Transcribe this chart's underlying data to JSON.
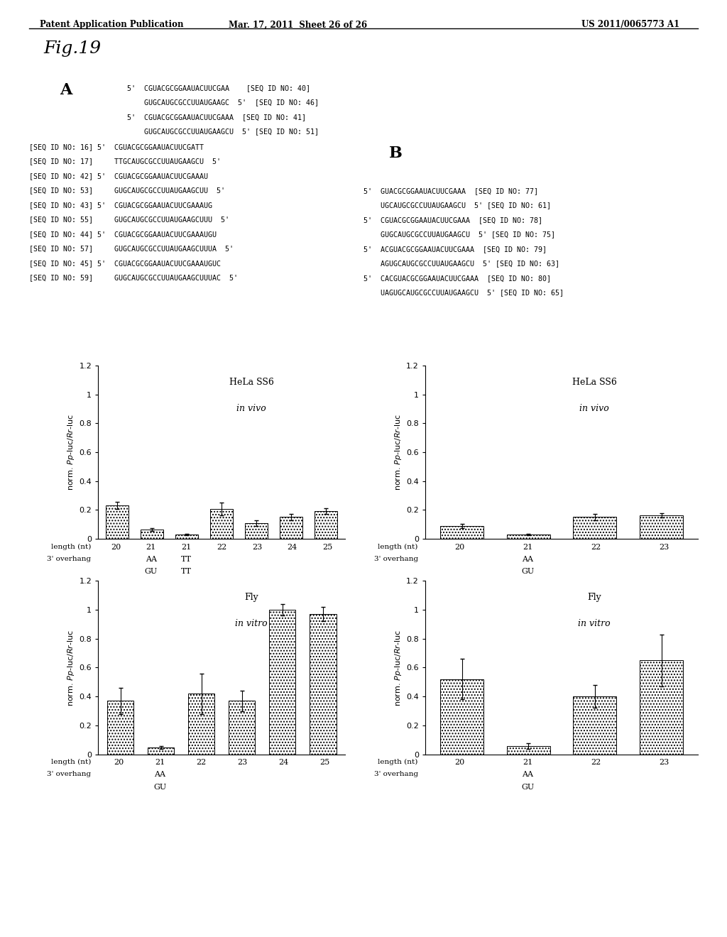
{
  "header_left": "Patent Application Publication",
  "header_mid": "Mar. 17, 2011  Sheet 26 of 26",
  "header_right": "US 2011/0065773 A1",
  "fig_title": "Fig.19",
  "section_A_label": "A",
  "section_B_label": "B",
  "seq_lines_A_top": [
    "5'  CGUACGCGGAAUACUUCGAA    [SEQ ID NO: 40]",
    "    GUGCAUGCGCCUUAUGAAGC  5'  [SEQ ID NO: 46]",
    "5'  CGUACGCGGAAUACUUCGAAA  [SEQ ID NO: 41]",
    "    GUGCAUGCGCCUUAUGAAGCU  5' [SEQ ID NO: 51]"
  ],
  "seq_lines_A_mid": [
    "[SEQ ID NO: 16] 5'  CGUACGCGGAAUACUUCGATT",
    "[SEQ ID NO: 17]     TTGCAUGCGCCUUAUGAAGCU  5'",
    "[SEQ ID NO: 42] 5'  CGUACGCGGAAUACUUCGAAAU",
    "[SEQ ID NO: 53]     GUGCAUGCGCCUUAUGAAGCUU  5'",
    "[SEQ ID NO: 43] 5'  CGUACGCGGAAUACUUCGAAAUG",
    "[SEQ ID NO: 55]     GUGCAUGCGCCUUAUGAAGCUUU  5'",
    "[SEQ ID NO: 44] 5'  CGUACGCGGAAUACUUCGAAAUGU",
    "[SEQ ID NO: 57]     GUGCAUGCGCCUUAUGAAGCUUUA  5'",
    "[SEQ ID NO: 45] 5'  CGUACGCGGAAUACUUCGAAAUGUC",
    "[SEQ ID NO: 59]     GUGCAUGCGCCUUAUGAAGCUUUAC  5'"
  ],
  "seq_lines_B": [
    "5'  GUACGCGGAAUACUUCGAAA  [SEQ ID NO: 77]",
    "    UGCAUGCGCCUUAUGAAGCU  5' [SEQ ID NO: 61]",
    "5'  CGUACGCGGAAUACUUCGAAA  [SEQ ID NO: 78]",
    "    GUGCAUGCGCCUUAUGAAGCU  5' [SEQ ID NO: 75]",
    "5'  ACGUACGCGGAAUACUUCGAAA  [SEQ ID NO: 79]",
    "    AGUGCAUGCGCCUUAUGAAGCU  5' [SEQ ID NO: 63]",
    "5'  CACGUACGCGGAAUACUUCGAAA  [SEQ ID NO: 80]",
    "    UAGUGCAUGCGCCUUAUGAAGCU  5' [SEQ ID NO: 65]"
  ],
  "chart_A_top": {
    "title_line1": "HeLa SS6",
    "title_line2": "in vivo",
    "ylim": [
      0,
      1.2
    ],
    "yticks": [
      0,
      0.2,
      0.4,
      0.6,
      0.8,
      1.0,
      1.2
    ],
    "ytick_labels": [
      "0",
      "0.2",
      "0.4",
      "0.6",
      "0.8",
      "1",
      "1.2"
    ],
    "bars": [
      0.23,
      0.065,
      0.03,
      0.205,
      0.11,
      0.15,
      0.19
    ],
    "errors": [
      0.025,
      0.01,
      0.005,
      0.045,
      0.02,
      0.02,
      0.02
    ],
    "nt_labels": [
      "20",
      "21",
      "21",
      "22",
      "23",
      "24",
      "25"
    ],
    "overhang_row1": [
      "",
      "AA",
      "TT",
      "",
      "",
      "",
      ""
    ],
    "overhang_row2": [
      "",
      "GU",
      "TT",
      "",
      "",
      "",
      ""
    ]
  },
  "chart_B_top": {
    "title_line1": "HeLa SS6",
    "title_line2": "in vivo",
    "ylim": [
      0,
      1.2
    ],
    "yticks": [
      0,
      0.2,
      0.4,
      0.6,
      0.8,
      1.0,
      1.2
    ],
    "ytick_labels": [
      "0",
      "0.2",
      "0.4",
      "0.6",
      "0.8",
      "1",
      "1.2"
    ],
    "bars": [
      0.09,
      0.03,
      0.15,
      0.16
    ],
    "errors": [
      0.015,
      0.005,
      0.02,
      0.015
    ],
    "nt_labels": [
      "20",
      "21",
      "22",
      "23"
    ],
    "overhang_row1": [
      "",
      "AA",
      "",
      ""
    ],
    "overhang_row2": [
      "",
      "GU",
      "",
      ""
    ]
  },
  "chart_A_bottom": {
    "title_line1": "Fly",
    "title_line2": "in vitro",
    "ylim": [
      0,
      1.2
    ],
    "yticks": [
      0,
      0.2,
      0.4,
      0.6,
      0.8,
      1.0,
      1.2
    ],
    "ytick_labels": [
      "0",
      "0.2",
      "0.4",
      "0.6",
      "0.8",
      "1",
      "1.2"
    ],
    "bars": [
      0.37,
      0.045,
      0.42,
      0.37,
      1.0,
      0.97
    ],
    "errors": [
      0.09,
      0.01,
      0.14,
      0.07,
      0.04,
      0.05
    ],
    "nt_labels": [
      "20",
      "21",
      "22",
      "23",
      "24",
      "25"
    ],
    "overhang_row1": [
      "",
      "AA",
      "",
      "",
      "",
      ""
    ],
    "overhang_row2": [
      "",
      "GU",
      "",
      "",
      "",
      ""
    ]
  },
  "chart_B_bottom": {
    "title_line1": "Fly",
    "title_line2": "in vitro",
    "ylim": [
      0,
      1.2
    ],
    "yticks": [
      0,
      0.2,
      0.4,
      0.6,
      0.8,
      1.0,
      1.2
    ],
    "ytick_labels": [
      "0",
      "0.2",
      "0.4",
      "0.6",
      "0.8",
      "1",
      "1.2"
    ],
    "bars": [
      0.52,
      0.055,
      0.4,
      0.65
    ],
    "errors": [
      0.14,
      0.02,
      0.08,
      0.18
    ],
    "nt_labels": [
      "20",
      "21",
      "22",
      "23"
    ],
    "overhang_row1": [
      "",
      "AA",
      "",
      ""
    ],
    "overhang_row2": [
      "",
      "GU",
      "",
      ""
    ]
  },
  "bar_color": "#ffffff",
  "bar_edgecolor": "#000000",
  "bar_hatch": "....",
  "background_color": "#ffffff",
  "text_color": "#000000"
}
